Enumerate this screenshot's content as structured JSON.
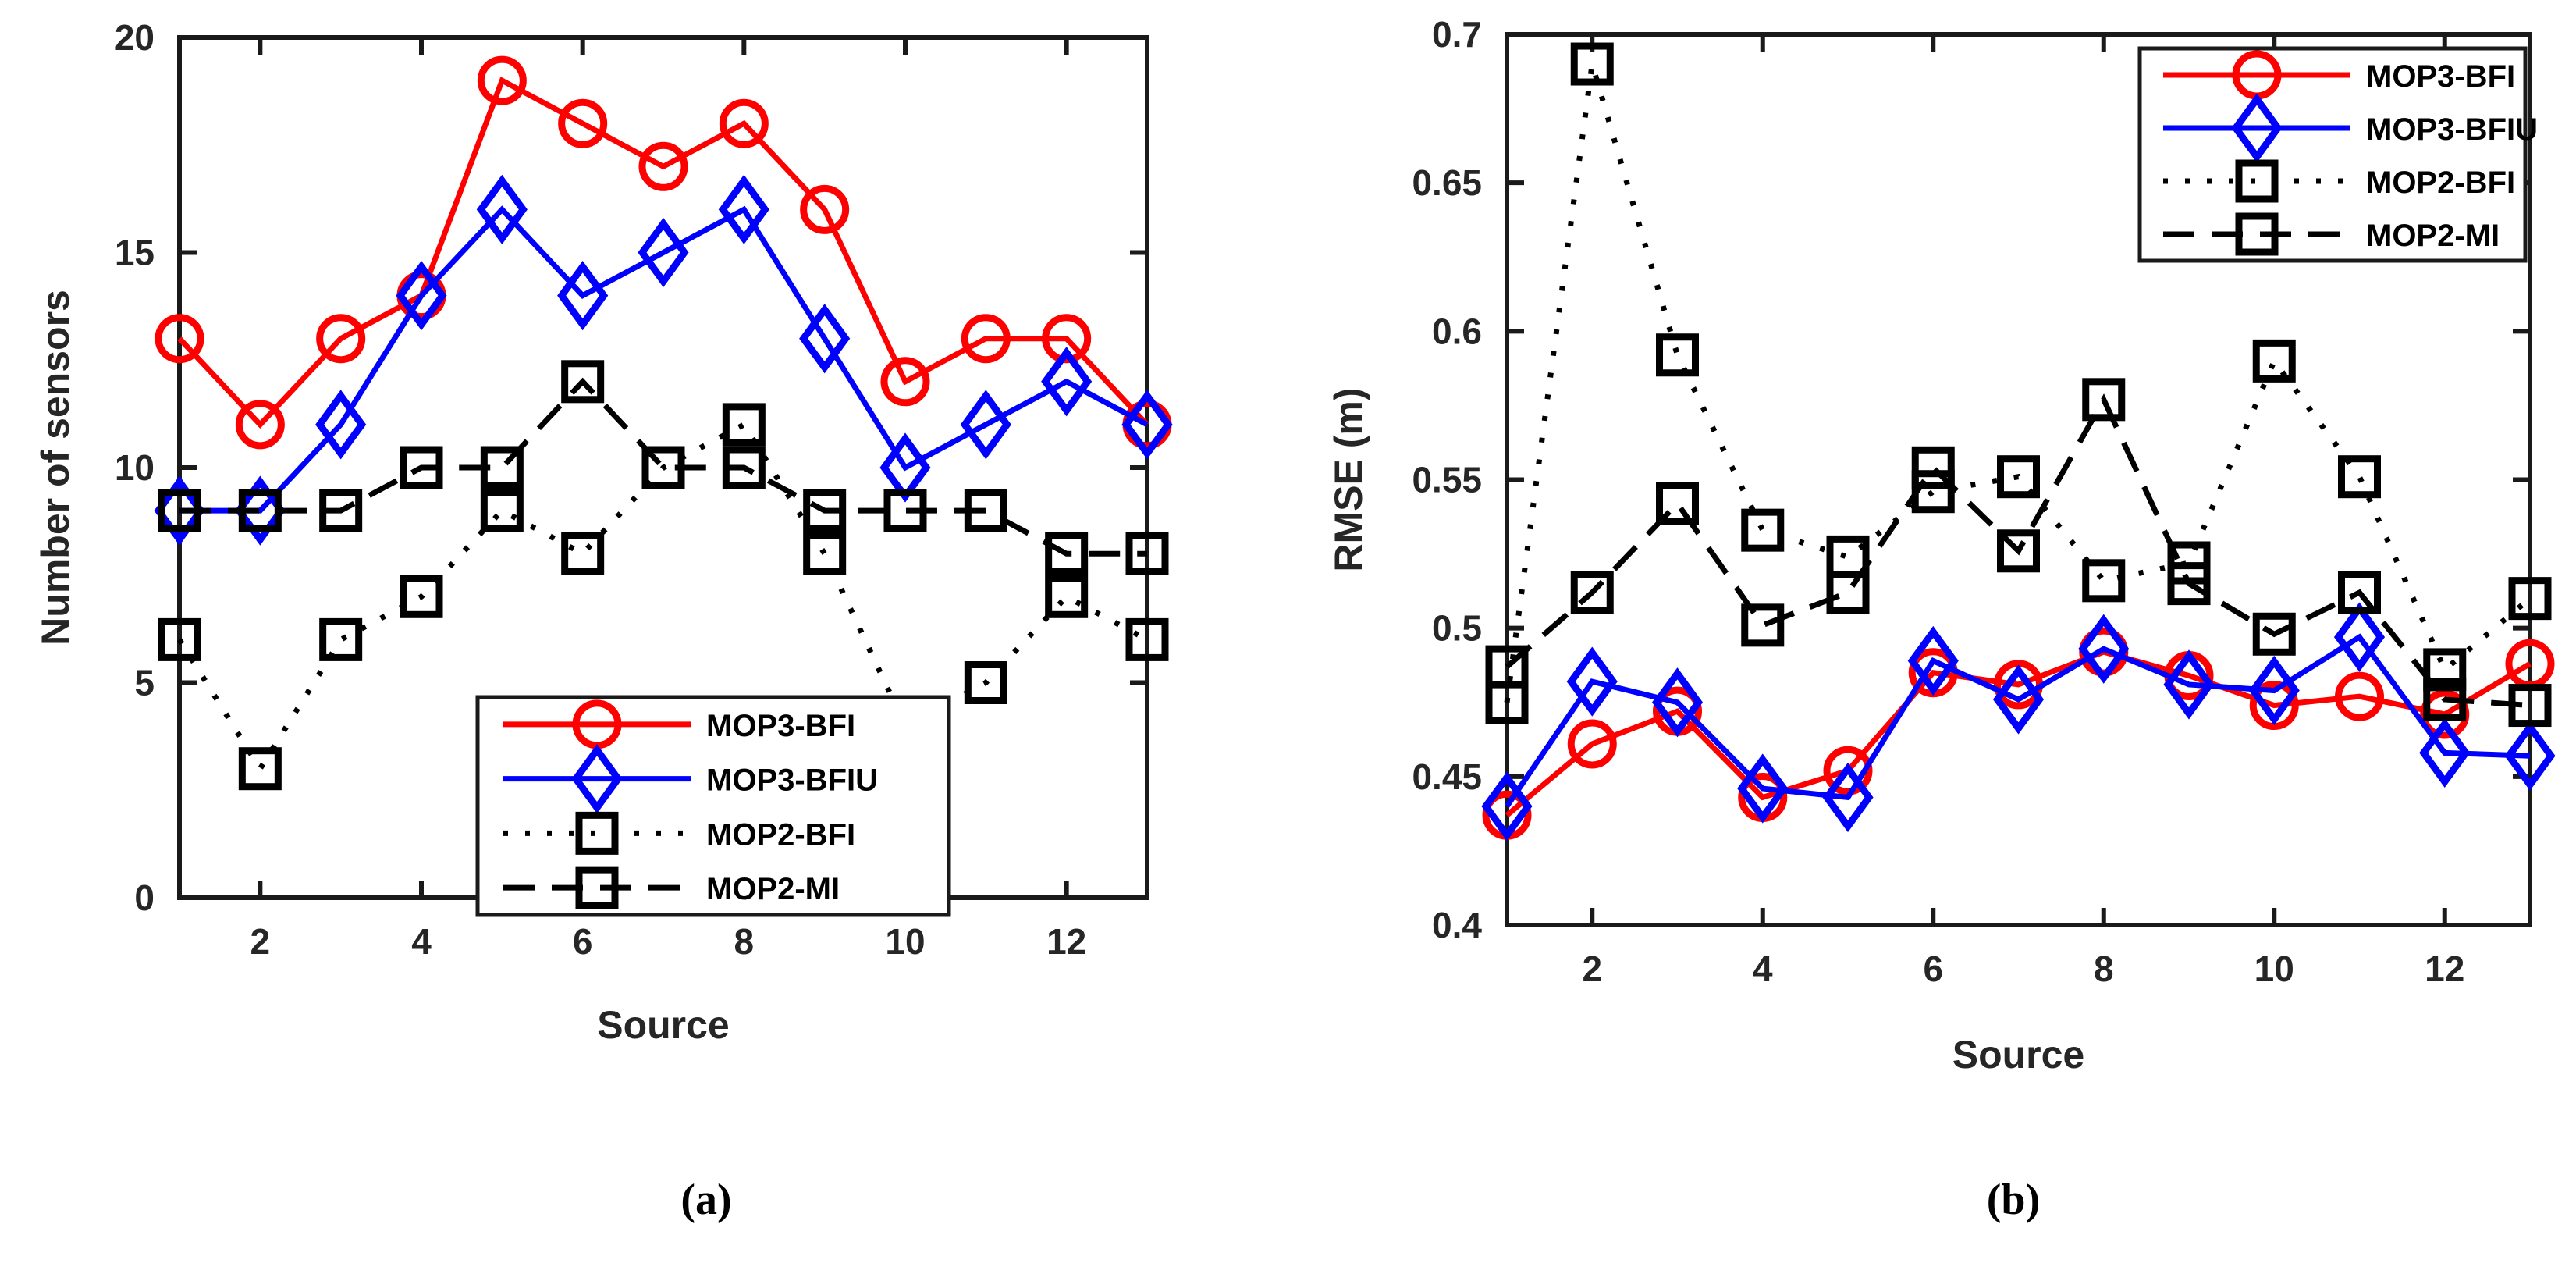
{
  "figure": {
    "background": "#ffffff",
    "captions": {
      "a": "(a)",
      "b": "(b)"
    },
    "axis_color": "#1a1a1a",
    "text_color": "#262626"
  },
  "chart_data": [
    {
      "id": "a",
      "type": "line",
      "title": "",
      "xlabel": "Source",
      "ylabel": "Number of sensors",
      "x": [
        1,
        2,
        3,
        4,
        5,
        6,
        7,
        8,
        9,
        10,
        11,
        12,
        13
      ],
      "xlim": [
        1,
        13
      ],
      "ylim": [
        0,
        20
      ],
      "xticks": [
        2,
        4,
        6,
        8,
        10,
        12
      ],
      "xtick_labels": [
        "2",
        "4",
        "6",
        "8",
        "10",
        "12"
      ],
      "yticks": [
        0,
        5,
        10,
        15,
        20
      ],
      "ytick_labels": [
        "0",
        "5",
        "10",
        "15",
        "20"
      ],
      "grid": false,
      "legend_position": "inside-bottom-center-right",
      "series": [
        {
          "name": "MOP3-BFI",
          "color": "#ff0000",
          "marker": "circle",
          "line": "solid",
          "values": [
            13,
            11,
            13,
            14,
            19,
            18,
            17,
            18,
            16,
            12,
            13,
            13,
            11
          ]
        },
        {
          "name": "MOP3-BFIU",
          "color": "#0000ff",
          "marker": "diamond",
          "line": "solid",
          "values": [
            9,
            9,
            11,
            14,
            16,
            14,
            15,
            16,
            13,
            10,
            11,
            12,
            11
          ]
        },
        {
          "name": "MOP2-BFI",
          "color": "#000000",
          "marker": "square",
          "line": "dotted",
          "values": [
            6,
            3,
            6,
            7,
            9,
            8,
            10,
            11,
            8,
            4,
            5,
            7,
            6
          ]
        },
        {
          "name": "MOP2-MI",
          "color": "#000000",
          "marker": "square",
          "line": "dashed",
          "values": [
            9,
            9,
            9,
            10,
            10,
            12,
            10,
            10,
            9,
            9,
            9,
            8,
            8
          ]
        }
      ]
    },
    {
      "id": "b",
      "type": "line",
      "title": "",
      "xlabel": "Source",
      "ylabel": "RMSE (m)",
      "x": [
        1,
        2,
        3,
        4,
        5,
        6,
        7,
        8,
        9,
        10,
        11,
        12,
        13
      ],
      "xlim": [
        1,
        13
      ],
      "ylim": [
        0.4,
        0.7
      ],
      "xticks": [
        2,
        4,
        6,
        8,
        10,
        12
      ],
      "xtick_labels": [
        "2",
        "4",
        "6",
        "8",
        "10",
        "12"
      ],
      "yticks": [
        0.4,
        0.45,
        0.5,
        0.55,
        0.6,
        0.65,
        0.7
      ],
      "ytick_labels": [
        "0.4",
        "0.45",
        "0.5",
        "0.55",
        "0.6",
        "0.65",
        "0.7"
      ],
      "grid": false,
      "legend_position": "inside-top-right",
      "series": [
        {
          "name": "MOP3-BFI",
          "color": "#ff0000",
          "marker": "circle",
          "line": "solid",
          "values": [
            0.437,
            0.461,
            0.472,
            0.443,
            0.452,
            0.485,
            0.481,
            0.492,
            0.484,
            0.474,
            0.477,
            0.471,
            0.488
          ]
        },
        {
          "name": "MOP3-BFIU",
          "color": "#0000ff",
          "marker": "diamond",
          "line": "solid",
          "values": [
            0.44,
            0.482,
            0.475,
            0.446,
            0.443,
            0.489,
            0.476,
            0.493,
            0.481,
            0.479,
            0.497,
            0.458,
            0.457
          ]
        },
        {
          "name": "MOP2-BFI",
          "color": "#000000",
          "marker": "square",
          "line": "dotted",
          "values": [
            0.475,
            0.69,
            0.592,
            0.533,
            0.524,
            0.546,
            0.551,
            0.516,
            0.522,
            0.59,
            0.551,
            0.486,
            0.51
          ]
        },
        {
          "name": "MOP2-MI",
          "color": "#000000",
          "marker": "square",
          "line": "dashed",
          "values": [
            0.487,
            0.512,
            0.542,
            0.501,
            0.512,
            0.554,
            0.526,
            0.577,
            0.515,
            0.498,
            0.512,
            0.476,
            0.474
          ]
        }
      ]
    }
  ]
}
